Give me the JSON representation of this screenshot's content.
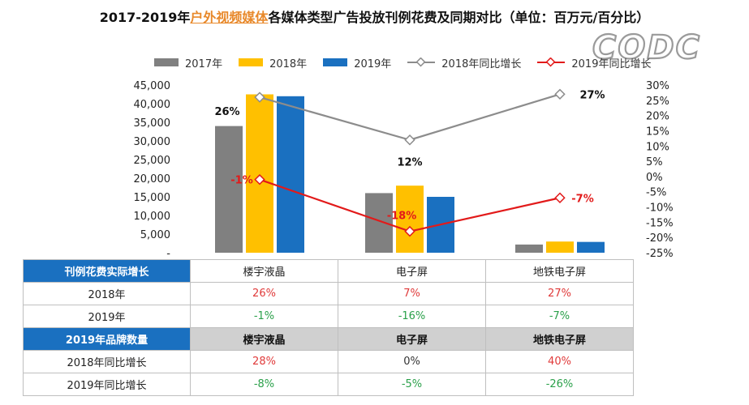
{
  "title": {
    "prefix": "2017-2019年",
    "highlight": "户外视频媒体",
    "suffix": "各媒体类型广告投放刊例花费及同期对比（单位：百万元/百分比）"
  },
  "logo": {
    "text": "CODC"
  },
  "colors": {
    "y2017": "#808080",
    "y2018": "#ffc000",
    "y2019": "#1a70c0",
    "growth2018": "#8c8c8c",
    "growth2019": "#e21a1a",
    "header_blue": "#1a70c0",
    "positive": "#e03a3a",
    "negative": "#2aa04a"
  },
  "chart_data": {
    "type": "bar",
    "categories": [
      "楼宇液晶",
      "电子屏",
      "地铁电子屏"
    ],
    "series": [
      {
        "name": "2017年",
        "values": [
          34000,
          16000,
          2200
        ],
        "color": "#808080"
      },
      {
        "name": "2018年",
        "values": [
          42500,
          18000,
          3000
        ],
        "color": "#ffc000"
      },
      {
        "name": "2019年",
        "values": [
          42000,
          15000,
          2900
        ],
        "color": "#1a70c0"
      }
    ],
    "line_series": [
      {
        "name": "2018年同比增长",
        "values": [
          26,
          12,
          27
        ],
        "labels": [
          "26%",
          "12%",
          "27%"
        ],
        "color": "#8c8c8c"
      },
      {
        "name": "2019年同比增长",
        "values": [
          -1,
          -18,
          -7
        ],
        "labels": [
          "-1%",
          "-18%",
          "-7%"
        ],
        "color": "#e21a1a"
      }
    ],
    "ylim_left": [
      0,
      45000
    ],
    "y_ticks_left": [
      "45,000",
      "40,000",
      "35,000",
      "30,000",
      "25,000",
      "20,000",
      "15,000",
      "10,000",
      "5,000",
      "-"
    ],
    "ylim_right": [
      -25,
      30
    ],
    "y_ticks_right": [
      "30%",
      "25%",
      "20%",
      "15%",
      "10%",
      "5%",
      "0%",
      "-5%",
      "-10%",
      "-15%",
      "-20%",
      "-25%"
    ],
    "legend_position": "top"
  },
  "table": {
    "section1": {
      "header": "刊例花费实际增长",
      "columns": [
        "楼宇液晶",
        "电子屏",
        "地铁电子屏"
      ],
      "rows": [
        {
          "label": "2018年",
          "values": [
            "26%",
            "7%",
            "27%"
          ]
        },
        {
          "label": "2019年",
          "values": [
            "-1%",
            "-16%",
            "-7%"
          ]
        }
      ]
    },
    "section2": {
      "header": "2019年品牌数量",
      "columns": [
        "楼宇液晶",
        "电子屏",
        "地铁电子屏"
      ],
      "rows": [
        {
          "label": "2018年同比增长",
          "values": [
            "28%",
            "0%",
            "40%"
          ]
        },
        {
          "label": "2019年同比增长",
          "values": [
            "-8%",
            "-5%",
            "-26%"
          ]
        }
      ]
    }
  }
}
